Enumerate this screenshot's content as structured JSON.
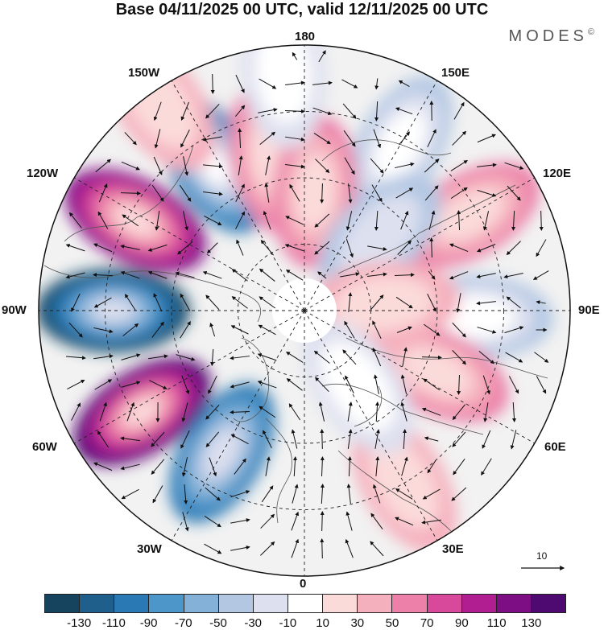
{
  "title": "Base 04/11/2025 00 UTC, valid 12/11/2025 00 UTC",
  "brand": "MODES",
  "brand_mark": "©",
  "longitude_labels": {
    "lon_180": "180",
    "lon_150w": "150W",
    "lon_150e": "150E",
    "lon_120w": "120W",
    "lon_120e": "120E",
    "lon_90w": "90W",
    "lon_90e": "90E",
    "lon_60w": "60W",
    "lon_60e": "60E",
    "lon_30w": "30W",
    "lon_30e": "30E",
    "lon_0": "0"
  },
  "reference_vector": {
    "label": "10",
    "magnitude": 10
  },
  "colorbar": {
    "colors": [
      "#16445e",
      "#1f5f8c",
      "#2a78b4",
      "#4d96c9",
      "#83b1d8",
      "#b3c7e3",
      "#dde0ef",
      "#ffffff",
      "#fbdada",
      "#f5b0bd",
      "#ec80a8",
      "#d8489b",
      "#b01e92",
      "#7d0e84",
      "#4f0a72"
    ],
    "ticks": [
      "-130",
      "-110",
      "-90",
      "-70",
      "-50",
      "-30",
      "-10",
      "10",
      "30",
      "50",
      "70",
      "90",
      "110",
      "130"
    ]
  },
  "anomalies": [
    {
      "lon": -90,
      "r": 0.72,
      "value": -140
    },
    {
      "lon": -58,
      "r": 0.72,
      "value": 140
    },
    {
      "lon": -118,
      "r": 0.72,
      "value": 120
    },
    {
      "lon": -148,
      "r": 0.65,
      "value": -110
    },
    {
      "lon": -30,
      "r": 0.62,
      "value": -100
    },
    {
      "lon": -168,
      "r": 0.58,
      "value": 60
    },
    {
      "lon": 150,
      "r": 0.72,
      "value": -50
    },
    {
      "lon": 175,
      "r": 0.45,
      "value": 50
    },
    {
      "lon": 120,
      "r": 0.72,
      "value": 60
    },
    {
      "lon": 135,
      "r": 0.4,
      "value": -40
    },
    {
      "lon": 88,
      "r": 0.65,
      "value": -50
    },
    {
      "lon": 65,
      "r": 0.55,
      "value": 60
    },
    {
      "lon": 95,
      "r": 0.3,
      "value": 30
    },
    {
      "lon": 30,
      "r": 0.75,
      "value": 30
    },
    {
      "lon": 35,
      "r": 0.35,
      "value": -25
    },
    {
      "lon": -145,
      "r": 0.95,
      "value": 40
    },
    {
      "lon": -175,
      "r": 0.9,
      "value": -30
    }
  ]
}
